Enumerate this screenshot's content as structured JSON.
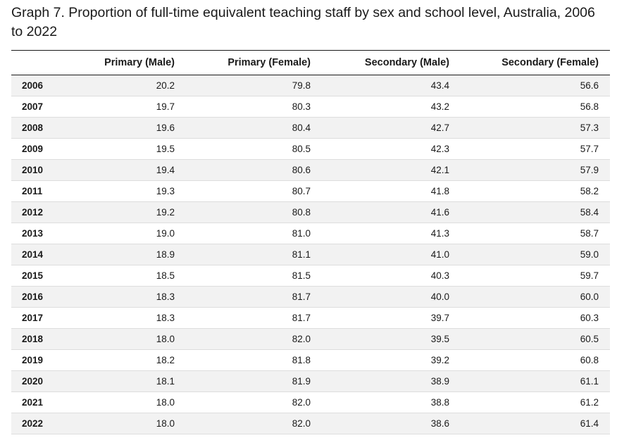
{
  "chart_data": {
    "type": "table",
    "title": "Graph 7. Proportion of full-time equivalent teaching staff by sex and school level, Australia, 2006 to 2022",
    "columns": [
      "Primary (Male)",
      "Primary (Female)",
      "Secondary (Male)",
      "Secondary (Female)"
    ],
    "rows": [
      {
        "year": "2006",
        "values": [
          "20.2",
          "79.8",
          "43.4",
          "56.6"
        ]
      },
      {
        "year": "2007",
        "values": [
          "19.7",
          "80.3",
          "43.2",
          "56.8"
        ]
      },
      {
        "year": "2008",
        "values": [
          "19.6",
          "80.4",
          "42.7",
          "57.3"
        ]
      },
      {
        "year": "2009",
        "values": [
          "19.5",
          "80.5",
          "42.3",
          "57.7"
        ]
      },
      {
        "year": "2010",
        "values": [
          "19.4",
          "80.6",
          "42.1",
          "57.9"
        ]
      },
      {
        "year": "2011",
        "values": [
          "19.3",
          "80.7",
          "41.8",
          "58.2"
        ]
      },
      {
        "year": "2012",
        "values": [
          "19.2",
          "80.8",
          "41.6",
          "58.4"
        ]
      },
      {
        "year": "2013",
        "values": [
          "19.0",
          "81.0",
          "41.3",
          "58.7"
        ]
      },
      {
        "year": "2014",
        "values": [
          "18.9",
          "81.1",
          "41.0",
          "59.0"
        ]
      },
      {
        "year": "2015",
        "values": [
          "18.5",
          "81.5",
          "40.3",
          "59.7"
        ]
      },
      {
        "year": "2016",
        "values": [
          "18.3",
          "81.7",
          "40.0",
          "60.0"
        ]
      },
      {
        "year": "2017",
        "values": [
          "18.3",
          "81.7",
          "39.7",
          "60.3"
        ]
      },
      {
        "year": "2018",
        "values": [
          "18.0",
          "82.0",
          "39.5",
          "60.5"
        ]
      },
      {
        "year": "2019",
        "values": [
          "18.2",
          "81.8",
          "39.2",
          "60.8"
        ]
      },
      {
        "year": "2020",
        "values": [
          "18.1",
          "81.9",
          "38.9",
          "61.1"
        ]
      },
      {
        "year": "2021",
        "values": [
          "18.0",
          "82.0",
          "38.8",
          "61.2"
        ]
      },
      {
        "year": "2022",
        "values": [
          "18.0",
          "82.0",
          "38.6",
          "61.4"
        ]
      }
    ]
  }
}
